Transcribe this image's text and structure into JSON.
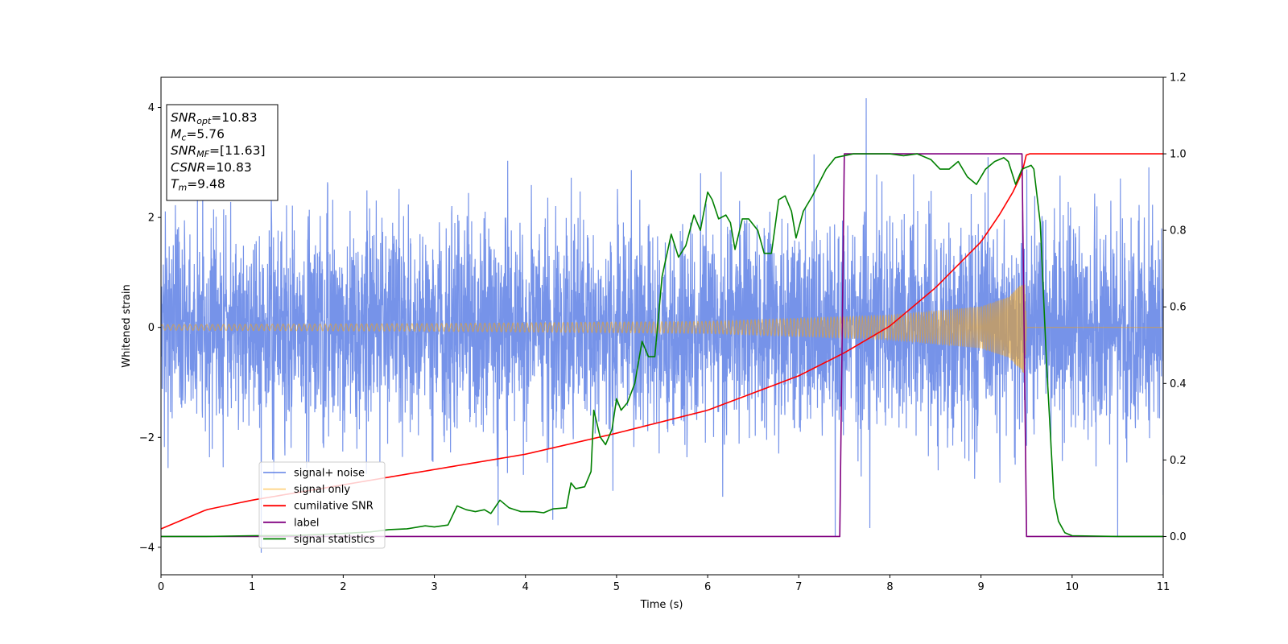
{
  "chart_data": {
    "type": "line",
    "xlabel": "Time (s)",
    "ylabel_left": "Whitened strain",
    "ylabel_right": "",
    "xlim": [
      0,
      11
    ],
    "ylim_left": [
      -4.5,
      4.55
    ],
    "ylim_right": [
      -0.1,
      1.2
    ],
    "xticks": [
      "0",
      "1",
      "2",
      "3",
      "4",
      "5",
      "6",
      "7",
      "8",
      "9",
      "10",
      "11"
    ],
    "yticks_left": [
      "−4",
      "−2",
      "0",
      "2",
      "4"
    ],
    "yticks_right": [
      "0.0",
      "0.2",
      "0.4",
      "0.6",
      "0.8",
      "1.0",
      "1.2"
    ],
    "grid": false,
    "legend_position": "lower left",
    "stats_box": [
      {
        "label": "SNR",
        "sub": "opt",
        "value": "=10.83"
      },
      {
        "label": "M",
        "sub": "c",
        "value": "=5.76"
      },
      {
        "label": "SNR",
        "sub": "MF",
        "value": "=[11.63]"
      },
      {
        "label": "CSNR",
        "sub": "",
        "value": "=10.83"
      },
      {
        "label": "T",
        "sub": "m",
        "value": "=9.48"
      }
    ],
    "series": [
      {
        "name": "signal+ noise",
        "axis": "left",
        "color": "#4169e1",
        "kind": "noisy strain (whitened noise, std ≈ 1, peaks ≈ ±4)",
        "peak_points": [
          [
            1.1,
            -4.1
          ],
          [
            3.7,
            -3.6
          ],
          [
            4.3,
            -3.5
          ],
          [
            6.35,
            2.3
          ],
          [
            7.4,
            -3.8
          ],
          [
            7.74,
            4.17
          ],
          [
            7.78,
            -3.65
          ],
          [
            10.5,
            -3.8
          ],
          [
            11.0,
            -3.05
          ]
        ]
      },
      {
        "name": "signal only",
        "axis": "left",
        "color": "#ffa500",
        "kind": "chirp, envelope amplitude",
        "envelope": [
          [
            0,
            0.05
          ],
          [
            3,
            0.07
          ],
          [
            6,
            0.11
          ],
          [
            8,
            0.22
          ],
          [
            9,
            0.38
          ],
          [
            9.3,
            0.55
          ],
          [
            9.48,
            0.85
          ],
          [
            9.5,
            0.0
          ],
          [
            11,
            0.0
          ]
        ]
      },
      {
        "name": "cumilative SNR",
        "axis": "right",
        "color": "#ff0000",
        "points": [
          [
            0,
            0.02
          ],
          [
            0.5,
            0.07
          ],
          [
            1,
            0.095
          ],
          [
            2,
            0.135
          ],
          [
            3,
            0.175
          ],
          [
            4,
            0.215
          ],
          [
            5,
            0.27
          ],
          [
            6,
            0.33
          ],
          [
            7,
            0.42
          ],
          [
            7.5,
            0.48
          ],
          [
            8,
            0.55
          ],
          [
            8.5,
            0.65
          ],
          [
            9,
            0.77
          ],
          [
            9.2,
            0.84
          ],
          [
            9.35,
            0.9
          ],
          [
            9.45,
            0.95
          ],
          [
            9.5,
            1.0
          ],
          [
            11,
            1.0
          ]
        ]
      },
      {
        "name": "label",
        "axis": "right",
        "color": "#800080",
        "points": [
          [
            0,
            0
          ],
          [
            7.45,
            0
          ],
          [
            7.5,
            1.0
          ],
          [
            9.45,
            1.0
          ],
          [
            9.5,
            0
          ],
          [
            11,
            0
          ]
        ]
      },
      {
        "name": "signal statistics",
        "axis": "right",
        "color": "#008000",
        "points": [
          [
            0,
            0.0
          ],
          [
            0.5,
            0.0
          ],
          [
            1.0,
            0.002
          ],
          [
            1.5,
            0.003
          ],
          [
            2.0,
            0.008
          ],
          [
            2.3,
            0.012
          ],
          [
            2.5,
            0.018
          ],
          [
            2.7,
            0.02
          ],
          [
            2.9,
            0.028
          ],
          [
            3.0,
            0.025
          ],
          [
            3.15,
            0.03
          ],
          [
            3.25,
            0.08
          ],
          [
            3.35,
            0.07
          ],
          [
            3.45,
            0.065
          ],
          [
            3.55,
            0.07
          ],
          [
            3.62,
            0.06
          ],
          [
            3.72,
            0.095
          ],
          [
            3.82,
            0.075
          ],
          [
            3.95,
            0.065
          ],
          [
            4.1,
            0.065
          ],
          [
            4.2,
            0.062
          ],
          [
            4.3,
            0.072
          ],
          [
            4.45,
            0.075
          ],
          [
            4.5,
            0.14
          ],
          [
            4.55,
            0.125
          ],
          [
            4.65,
            0.13
          ],
          [
            4.72,
            0.17
          ],
          [
            4.75,
            0.33
          ],
          [
            4.82,
            0.26
          ],
          [
            4.88,
            0.24
          ],
          [
            4.95,
            0.28
          ],
          [
            5.0,
            0.36
          ],
          [
            5.05,
            0.33
          ],
          [
            5.12,
            0.35
          ],
          [
            5.2,
            0.4
          ],
          [
            5.28,
            0.51
          ],
          [
            5.35,
            0.47
          ],
          [
            5.42,
            0.47
          ],
          [
            5.5,
            0.68
          ],
          [
            5.6,
            0.79
          ],
          [
            5.68,
            0.73
          ],
          [
            5.76,
            0.76
          ],
          [
            5.85,
            0.84
          ],
          [
            5.92,
            0.8
          ],
          [
            6.0,
            0.9
          ],
          [
            6.05,
            0.88
          ],
          [
            6.12,
            0.83
          ],
          [
            6.2,
            0.84
          ],
          [
            6.25,
            0.82
          ],
          [
            6.3,
            0.75
          ],
          [
            6.38,
            0.83
          ],
          [
            6.45,
            0.83
          ],
          [
            6.55,
            0.8
          ],
          [
            6.62,
            0.74
          ],
          [
            6.7,
            0.74
          ],
          [
            6.78,
            0.88
          ],
          [
            6.85,
            0.89
          ],
          [
            6.92,
            0.85
          ],
          [
            6.97,
            0.78
          ],
          [
            7.05,
            0.85
          ],
          [
            7.15,
            0.89
          ],
          [
            7.3,
            0.96
          ],
          [
            7.4,
            0.99
          ],
          [
            7.6,
            1.0
          ],
          [
            7.8,
            1.0
          ],
          [
            8.0,
            1.0
          ],
          [
            8.15,
            0.995
          ],
          [
            8.3,
            1.0
          ],
          [
            8.45,
            0.985
          ],
          [
            8.55,
            0.96
          ],
          [
            8.65,
            0.96
          ],
          [
            8.75,
            0.98
          ],
          [
            8.85,
            0.94
          ],
          [
            8.95,
            0.92
          ],
          [
            9.05,
            0.96
          ],
          [
            9.15,
            0.98
          ],
          [
            9.25,
            0.99
          ],
          [
            9.3,
            0.98
          ],
          [
            9.38,
            0.92
          ],
          [
            9.45,
            0.96
          ],
          [
            9.55,
            0.97
          ],
          [
            9.58,
            0.96
          ],
          [
            9.65,
            0.82
          ],
          [
            9.72,
            0.45
          ],
          [
            9.8,
            0.1
          ],
          [
            9.85,
            0.04
          ],
          [
            9.92,
            0.01
          ],
          [
            10.0,
            0.002
          ],
          [
            10.5,
            0.0
          ],
          [
            11,
            0.0
          ]
        ]
      }
    ]
  }
}
